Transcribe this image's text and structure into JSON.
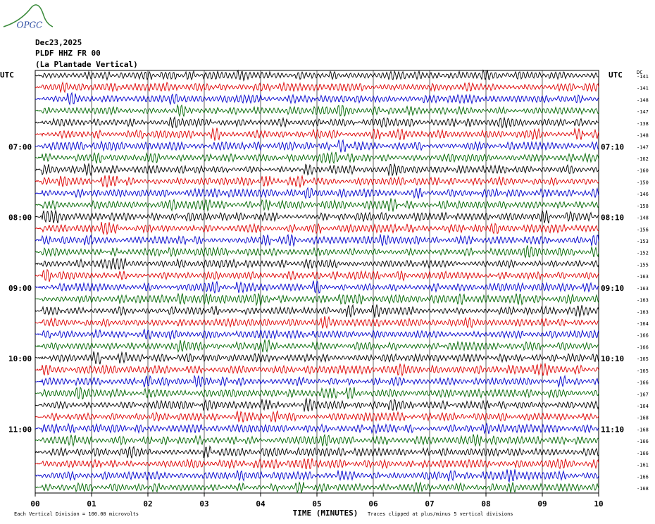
{
  "header": {
    "logo": "OPGC",
    "date": "Dec23,2025",
    "station": "PLDF HHZ FR 00",
    "location": "(La Plantade Vertical)"
  },
  "left_axis_title": "UTC",
  "right_axis_title": "UTC",
  "dc_title": "DC",
  "trace_colors": [
    "#000000",
    "#dd0000",
    "#0000cc",
    "#006600"
  ],
  "rows": [
    {
      "dc": -141
    },
    {
      "dc": -141
    },
    {
      "dc": -148
    },
    {
      "dc": -147
    },
    {
      "dc": -138
    },
    {
      "dc": -148
    },
    {
      "left_label": "07:00",
      "right_label": "07:10",
      "dc": -147
    },
    {
      "dc": -162
    },
    {
      "dc": -160
    },
    {
      "dc": -150
    },
    {
      "dc": -146
    },
    {
      "dc": -158
    },
    {
      "left_label": "08:00",
      "right_label": "08:10",
      "dc": -148
    },
    {
      "dc": -156
    },
    {
      "dc": -153
    },
    {
      "dc": -152
    },
    {
      "dc": -155
    },
    {
      "dc": -163
    },
    {
      "left_label": "09:00",
      "right_label": "09:10",
      "dc": -163
    },
    {
      "dc": -163
    },
    {
      "dc": -163
    },
    {
      "dc": -164
    },
    {
      "dc": -166
    },
    {
      "dc": -166
    },
    {
      "left_label": "10:00",
      "right_label": "10:10",
      "dc": -165
    },
    {
      "dc": -165
    },
    {
      "dc": -166
    },
    {
      "dc": -167
    },
    {
      "dc": -164
    },
    {
      "dc": -168
    },
    {
      "left_label": "11:00",
      "right_label": "11:10",
      "dc": -168
    },
    {
      "dc": -166
    },
    {
      "dc": -166
    },
    {
      "dc": -161
    },
    {
      "dc": -166
    },
    {
      "dc": -168
    }
  ],
  "x_ticks": [
    "00",
    "01",
    "02",
    "03",
    "04",
    "05",
    "06",
    "07",
    "08",
    "09",
    "10"
  ],
  "x_axis_title": "TIME (MINUTES)",
  "footer": {
    "scale_note": "Each Vertical Division =  100.00 microvolts",
    "clip_note": "Traces clipped at plus/minus 5 vertical divisions"
  }
}
